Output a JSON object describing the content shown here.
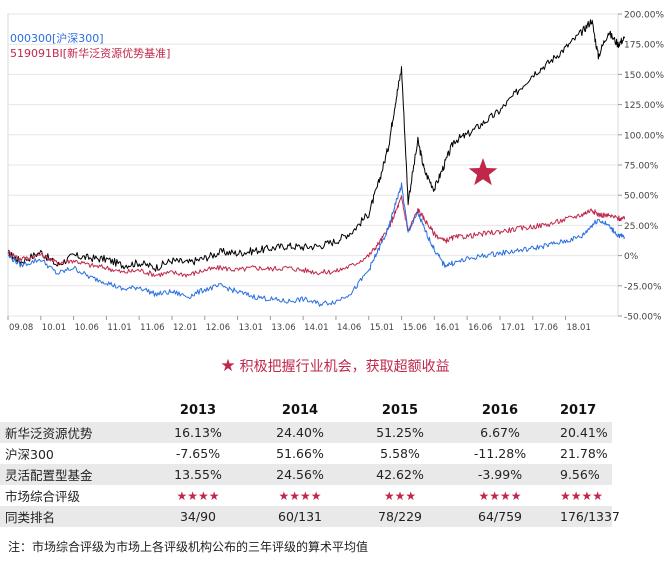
{
  "chart_data": {
    "type": "line",
    "legend": [
      {
        "label": "000300[沪深300]",
        "color": "#2a6fe0"
      },
      {
        "label": "519091BI[新华泛资源优势基准]",
        "color": "#c0284b"
      }
    ],
    "x_ticks": [
      "09.08",
      "10.01",
      "10.06",
      "11.01",
      "11.06",
      "12.01",
      "12.06",
      "13.01",
      "13.06",
      "14.01",
      "14.06",
      "15.01",
      "15.06",
      "16.01",
      "16.06",
      "17.01",
      "17.06",
      "18.01"
    ],
    "y_ticks": [
      "200.00%",
      "175.00%",
      "150.00%",
      "125.00%",
      "100.00%",
      "75.00%",
      "50.00%",
      "25.00%",
      "0%",
      "-25.00%",
      "-50.00%"
    ],
    "ylim": [
      -50,
      200
    ],
    "series": [
      {
        "color": "#000000",
        "x": [
          0,
          0.4,
          1,
          1.5,
          2,
          2.5,
          3,
          3.5,
          4,
          4.5,
          5,
          5.5,
          6,
          6.5,
          7,
          7.5,
          8,
          8.5,
          9,
          9.5,
          10,
          10.5,
          11,
          11.3,
          11.6,
          11.8,
          12.0,
          12.2,
          12.5,
          12.7,
          13,
          13.3,
          13.6,
          14,
          14.5,
          15,
          15.5,
          16,
          16.5,
          17,
          17.5,
          17.8,
          18,
          18.3,
          18.6,
          18.8
        ],
        "y": [
          2,
          -5,
          3,
          -8,
          0,
          -2,
          -3,
          -8,
          -6,
          -10,
          -4,
          -6,
          -2,
          3,
          2,
          4,
          6,
          8,
          7,
          8,
          12,
          20,
          35,
          60,
          90,
          125,
          155,
          45,
          95,
          70,
          55,
          75,
          95,
          100,
          110,
          120,
          135,
          150,
          160,
          172,
          185,
          195,
          165,
          185,
          175,
          180
        ]
      },
      {
        "color": "#c0284b",
        "x": [
          0,
          0.4,
          1,
          1.5,
          2,
          2.5,
          3,
          3.5,
          4,
          4.5,
          5,
          5.5,
          6,
          6.5,
          7,
          7.5,
          8,
          8.5,
          9,
          9.5,
          10,
          10.5,
          11,
          11.3,
          11.6,
          11.8,
          12.0,
          12.2,
          12.5,
          12.7,
          13,
          13.3,
          13.6,
          14,
          14.5,
          15,
          15.5,
          16,
          16.5,
          17,
          17.5,
          17.8,
          18,
          18.3,
          18.6,
          18.8
        ],
        "y": [
          3,
          -3,
          1,
          -6,
          -4,
          -8,
          -10,
          -14,
          -12,
          -16,
          -14,
          -16,
          -12,
          -10,
          -12,
          -10,
          -11,
          -10,
          -12,
          -14,
          -13,
          -8,
          0,
          10,
          22,
          35,
          48,
          20,
          38,
          30,
          18,
          12,
          15,
          16,
          18,
          20,
          22,
          24,
          26,
          30,
          34,
          38,
          34,
          33,
          31,
          30
        ]
      },
      {
        "color": "#2a6fe0",
        "x": [
          0,
          0.4,
          1,
          1.5,
          2,
          2.5,
          3,
          3.5,
          4,
          4.5,
          5,
          5.5,
          6,
          6.5,
          7,
          7.5,
          8,
          8.5,
          9,
          9.5,
          10,
          10.5,
          11,
          11.3,
          11.6,
          11.8,
          12.0,
          12.2,
          12.5,
          12.7,
          13,
          13.3,
          13.6,
          14,
          14.5,
          15,
          15.5,
          16,
          16.5,
          17,
          17.5,
          17.8,
          18,
          18.3,
          18.6,
          18.8
        ],
        "y": [
          0,
          -8,
          -3,
          -15,
          -10,
          -18,
          -22,
          -28,
          -26,
          -32,
          -30,
          -34,
          -28,
          -25,
          -30,
          -34,
          -36,
          -38,
          -36,
          -40,
          -38,
          -30,
          -12,
          5,
          22,
          42,
          58,
          20,
          35,
          22,
          5,
          -8,
          -6,
          -3,
          0,
          2,
          4,
          6,
          9,
          12,
          16,
          25,
          30,
          25,
          17,
          15
        ]
      }
    ],
    "annotation_star_color": "#c0284b"
  },
  "slogan": {
    "star": "★",
    "text": "积极把握行业机会，获取超额收益"
  },
  "table": {
    "years": [
      "2013",
      "2014",
      "2015",
      "2016",
      "2017"
    ],
    "rows": [
      {
        "label": "新华泛资源优势",
        "values": [
          "16.13%",
          "24.40%",
          "51.25%",
          "6.67%",
          "20.41%"
        ]
      },
      {
        "label": "沪深300",
        "values": [
          "-7.65%",
          "51.66%",
          "5.58%",
          "-11.28%",
          "21.78%"
        ]
      },
      {
        "label": "灵活配置型基金",
        "values": [
          "13.55%",
          "24.56%",
          "42.62%",
          "-3.99%",
          "9.56%"
        ]
      },
      {
        "label": "市场综合评级",
        "values": [
          "★★★★",
          "★★★★",
          "★★★",
          "★★★★",
          "★★★★"
        ]
      },
      {
        "label": "同类排名",
        "values": [
          "34/90",
          "60/131",
          "78/229",
          "64/759",
          "176/1337"
        ]
      }
    ]
  },
  "footnote": "注：市场综合评级为市场上各评级机构公布的三年评级的算术平均值"
}
